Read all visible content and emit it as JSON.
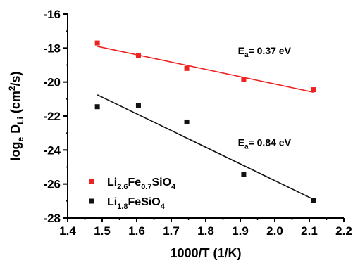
{
  "chart_data": {
    "type": "scatter",
    "xlabel": "1000/T (1/K)",
    "ylabel": {
      "base": "log",
      "base_sub": "e",
      "mid": " D",
      "mid_sub": "Li",
      "unit": " (cm",
      "unit_sup": "2",
      "unit_end": "/s)"
    },
    "xlim": [
      1.4,
      2.2
    ],
    "ylim": [
      -28,
      -16
    ],
    "x_ticks": [
      1.4,
      1.5,
      1.6,
      1.7,
      1.8,
      1.9,
      2.0,
      2.1,
      2.2
    ],
    "x_tick_labels": [
      "1.4",
      "1.5",
      "1.6",
      "1.7",
      "1.8",
      "1.9",
      "2.0",
      "2.1",
      "2.2"
    ],
    "y_ticks": [
      -16,
      -18,
      -20,
      -22,
      -24,
      -26,
      -28
    ],
    "y_tick_labels": [
      "-16",
      "-18",
      "-20",
      "-22",
      "-24",
      "-26",
      "-28"
    ],
    "grid": false,
    "legend_position": "bottom-left",
    "series": [
      {
        "key": "red",
        "name_parts": [
          "Li",
          "2.6",
          "Fe",
          "0.7",
          "SiO",
          "4"
        ],
        "color": "#ee2222",
        "marker": "square",
        "x": [
          1.486,
          1.605,
          1.745,
          1.91,
          2.112
        ],
        "y": [
          -17.7,
          -18.45,
          -19.2,
          -19.85,
          -20.45
        ],
        "fit": {
          "x": [
            1.486,
            2.112
          ],
          "y": [
            -17.9,
            -20.6
          ]
        },
        "annotation": {
          "prefix": "E",
          "sub": "a",
          "text": "= 0.37 eV",
          "x": 1.97,
          "y": -18.35
        }
      },
      {
        "key": "black",
        "name_parts": [
          "Li",
          "1.8",
          "FeSiO",
          "4"
        ],
        "color": "#111111",
        "marker": "square",
        "x": [
          1.486,
          1.605,
          1.745,
          1.91,
          2.112
        ],
        "y": [
          -21.45,
          -21.4,
          -22.35,
          -25.45,
          -26.95
        ],
        "fit": {
          "x": [
            1.486,
            2.112
          ],
          "y": [
            -20.75,
            -26.9
          ]
        },
        "annotation": {
          "prefix": "E",
          "sub": "a",
          "text": "= 0.84 eV",
          "x": 1.97,
          "y": -23.75
        }
      }
    ]
  }
}
